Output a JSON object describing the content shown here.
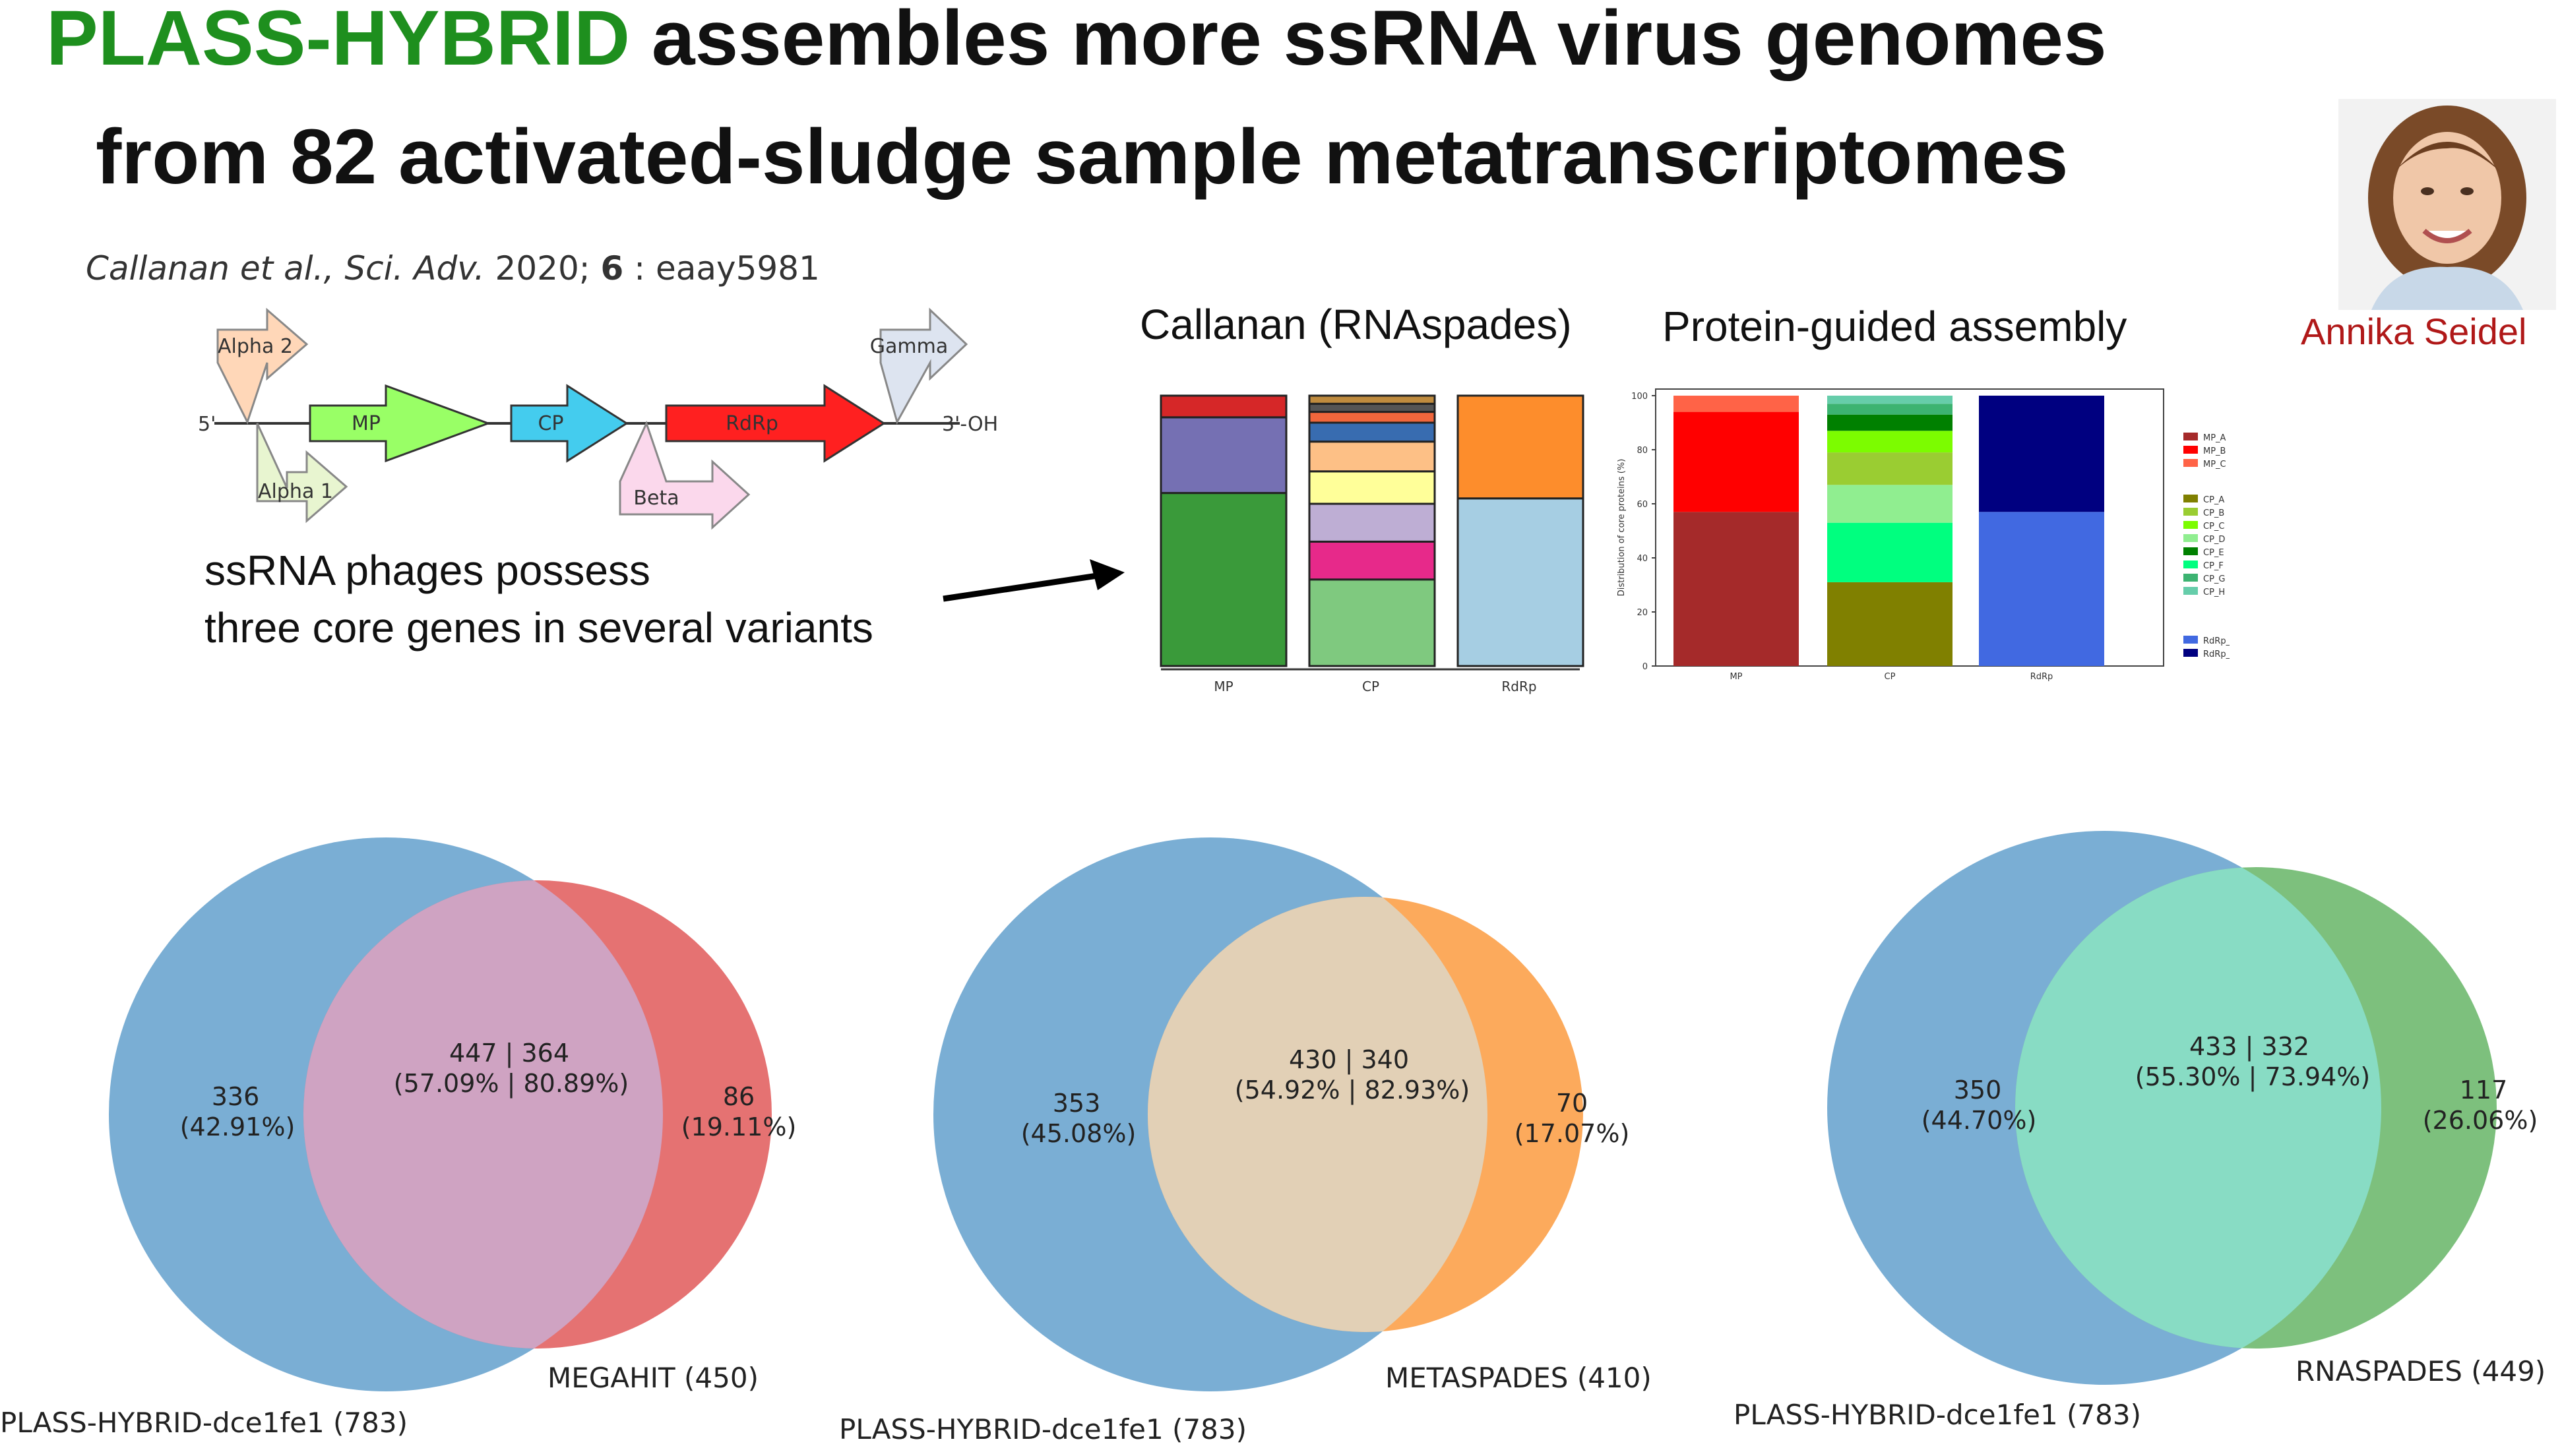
{
  "title": {
    "highlight": "PLASS-HYBRID",
    "line1_rest": " assembles more ssRNA virus genomes",
    "line2": "from 82 activated-sludge sample metatranscriptomes"
  },
  "citation": {
    "authors": "Callanan et al.",
    "journal": ", Sci. Adv.",
    "year": " 2020; ",
    "volume": "6",
    "article": " : eaay5981"
  },
  "author_name": "Annika Seidel",
  "genome_map": {
    "five_prime": "5'",
    "three_prime": "3'-OH",
    "genes": {
      "alpha2": "Alpha 2",
      "alpha1": "Alpha 1",
      "mp": "MP",
      "cp": "CP",
      "beta": "Beta",
      "rdrp": "RdRp",
      "gamma": "Gamma"
    },
    "colors": {
      "mp": "#99ff66",
      "cp": "#44ccee",
      "rdrp": "#ff2020"
    }
  },
  "caption": {
    "line1": "ssRNA phages possess",
    "line2": "three core genes in several variants"
  },
  "panels": {
    "left_title": "Callanan (RNAspades)",
    "right_title": "Protein-guided assembly"
  },
  "chart_data": [
    {
      "type": "bar",
      "stacked": true,
      "title": "Callanan (RNAspades)",
      "categories": [
        "MP",
        "CP",
        "RdRp"
      ],
      "stacks": [
        [
          {
            "value": 64,
            "color": "#3a9a3a"
          },
          {
            "value": 28,
            "color": "#7570b3"
          },
          {
            "value": 8,
            "color": "#d62728"
          }
        ],
        [
          {
            "value": 32,
            "color": "#7fc97f"
          },
          {
            "value": 14,
            "color": "#e7298a"
          },
          {
            "value": 14,
            "color": "#beaed4"
          },
          {
            "value": 12,
            "color": "#ffff99"
          },
          {
            "value": 11,
            "color": "#fdc086"
          },
          {
            "value": 7,
            "color": "#386cb0"
          },
          {
            "value": 4,
            "color": "#f0663c"
          },
          {
            "value": 3,
            "color": "#555555"
          },
          {
            "value": 3,
            "color": "#bf8b3e"
          }
        ],
        [
          {
            "value": 62,
            "color": "#a6cee3"
          },
          {
            "value": 38,
            "color": "#fd8d2c"
          }
        ]
      ]
    },
    {
      "type": "bar",
      "stacked": true,
      "title": "Protein-guided assembly",
      "ylabel": "Distribution of core proteins (%)",
      "ylim": [
        0,
        100
      ],
      "yticks": [
        "0",
        "20",
        "40",
        "60",
        "80",
        "100"
      ],
      "categories": [
        "MP",
        "CP",
        "RdRp"
      ],
      "stacks": [
        [
          {
            "name": "MP_A",
            "value": 57,
            "color": "#a52a2a"
          },
          {
            "name": "MP_B",
            "value": 37,
            "color": "#ff0000"
          },
          {
            "name": "MP_C",
            "value": 6,
            "color": "#ff6347"
          }
        ],
        [
          {
            "name": "CP_A",
            "value": 31,
            "color": "#808000"
          },
          {
            "name": "CP_F",
            "value": 22,
            "color": "#00ff7f"
          },
          {
            "name": "CP_D",
            "value": 14,
            "color": "#90ee90"
          },
          {
            "name": "CP_B",
            "value": 12,
            "color": "#9acd32"
          },
          {
            "name": "CP_C",
            "value": 8,
            "color": "#7cfc00"
          },
          {
            "name": "CP_E",
            "value": 6,
            "color": "#008000"
          },
          {
            "name": "CP_G",
            "value": 4,
            "color": "#3cb371"
          },
          {
            "name": "CP_H",
            "value": 3,
            "color": "#66cdaa"
          }
        ],
        [
          {
            "name": "RdRp_A",
            "value": 57,
            "color": "#4169e1"
          },
          {
            "name": "RdRp_B",
            "value": 43,
            "color": "#000080"
          }
        ]
      ],
      "legend": [
        "MP_A",
        "MP_B",
        "MP_C",
        "CP_A",
        "CP_B",
        "CP_C",
        "CP_D",
        "CP_E",
        "CP_F",
        "CP_G",
        "CP_H",
        "RdRp_A",
        "RdRp_B"
      ],
      "legend_colors": [
        "#a52a2a",
        "#ff0000",
        "#ff6347",
        "#808000",
        "#9acd32",
        "#7cfc00",
        "#90ee90",
        "#008000",
        "#00ff7f",
        "#3cb371",
        "#66cdaa",
        "#4169e1",
        "#000080"
      ]
    }
  ],
  "venns": [
    {
      "left_only": "336",
      "left_only_pct": "(42.91%)",
      "both": "447 | 364",
      "both_pct": "(57.09% | 80.89%)",
      "right_only": "86",
      "right_only_pct": "(19.11%)",
      "left_label": "PLASS-HYBRID-dce1fe1 (783)",
      "right_label": "MEGAHIT (450)",
      "colors": {
        "left": "#7aaed4",
        "overlap": "#cfa3c2",
        "right": "#e57272"
      }
    },
    {
      "left_only": "353",
      "left_only_pct": "(45.08%)",
      "both": "430 | 340",
      "both_pct": "(54.92% | 82.93%)",
      "right_only": "70",
      "right_only_pct": "(17.07%)",
      "left_label": "PLASS-HYBRID-dce1fe1 (783)",
      "right_label": "METASPADES (410)",
      "colors": {
        "left": "#7aaed4",
        "overlap": "#e2d0b6",
        "right": "#fcaa5c"
      }
    },
    {
      "left_only": "350",
      "left_only_pct": "(44.70%)",
      "both": "433 | 332",
      "both_pct": "(55.30% | 73.94%)",
      "right_only": "117",
      "right_only_pct": "(26.06%)",
      "left_label": "PLASS-HYBRID-dce1fe1 (783)",
      "right_label": "RNASPADES (449)",
      "colors": {
        "left": "#7aaed4",
        "overlap": "#88dcc4",
        "right": "#7dc07d"
      }
    }
  ]
}
